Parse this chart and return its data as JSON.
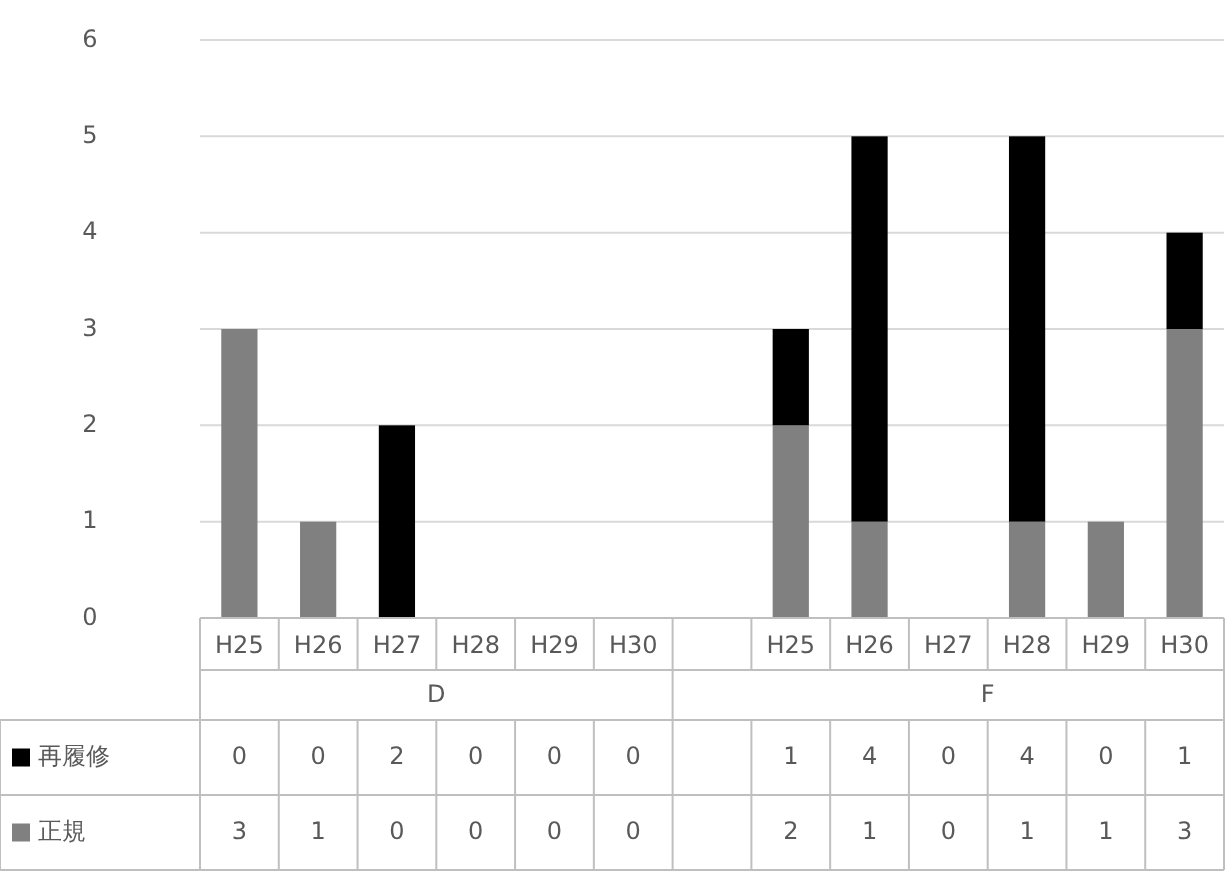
{
  "chart_data": {
    "type": "bar",
    "stacked": true,
    "categories": [
      "H25",
      "H26",
      "H27",
      "H28",
      "H29",
      "H30",
      null,
      "H25",
      "H26",
      "H27",
      "H28",
      "H29",
      "H30"
    ],
    "series": [
      {
        "name": "正規",
        "color": "#808080",
        "values": [
          3,
          1,
          0,
          0,
          0,
          0,
          null,
          2,
          1,
          0,
          1,
          1,
          3
        ]
      },
      {
        "name": "再履修",
        "color": "#000000",
        "values": [
          0,
          0,
          2,
          0,
          0,
          0,
          null,
          1,
          4,
          0,
          4,
          0,
          1
        ]
      }
    ],
    "annotations": [
      "D",
      "F"
    ],
    "ylim": [
      0,
      6
    ],
    "yticks": [
      0,
      1,
      2,
      3,
      4,
      5,
      6
    ],
    "grid": "y",
    "data_labels": true,
    "legend": "bottom"
  }
}
